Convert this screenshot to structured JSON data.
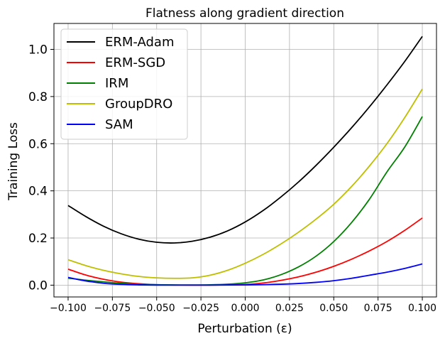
{
  "chart_data": {
    "type": "line",
    "title": "Flatness along gradient direction",
    "xlabel": "Perturbation (ε)",
    "ylabel": "Training Loss",
    "xlim": [
      -0.108,
      0.108
    ],
    "ylim": [
      -0.05,
      1.11
    ],
    "grid": true,
    "legend_position": "top-left",
    "x_ticks": [
      -0.1,
      -0.075,
      -0.05,
      -0.025,
      0.0,
      0.025,
      0.05,
      0.075,
      0.1
    ],
    "x_tick_labels": [
      "−0.100",
      "−0.075",
      "−0.050",
      "−0.025",
      "0.000",
      "0.025",
      "0.050",
      "0.075",
      "0.100"
    ],
    "y_ticks": [
      0.0,
      0.2,
      0.4,
      0.6,
      0.8,
      1.0
    ],
    "y_tick_labels": [
      "0.0",
      "0.2",
      "0.4",
      "0.6",
      "0.8",
      "1.0"
    ],
    "x": [
      -0.1,
      -0.09,
      -0.08,
      -0.07,
      -0.06,
      -0.05,
      -0.04,
      -0.03,
      -0.02,
      -0.01,
      0.0,
      0.01,
      0.02,
      0.03,
      0.04,
      0.05,
      0.06,
      0.07,
      0.08,
      0.09,
      0.1
    ],
    "series": [
      {
        "name": "ERM-Adam",
        "color": "#000000",
        "values": [
          0.338,
          0.291,
          0.25,
          0.218,
          0.195,
          0.182,
          0.179,
          0.186,
          0.203,
          0.23,
          0.268,
          0.316,
          0.373,
          0.437,
          0.508,
          0.585,
          0.667,
          0.755,
          0.849,
          0.948,
          1.055
        ]
      },
      {
        "name": "ERM-SGD",
        "color": "#ff0000",
        "values": [
          0.068,
          0.043,
          0.025,
          0.013,
          0.006,
          0.002,
          0.0005,
          0.0003,
          0.0003,
          0.001,
          0.003,
          0.009,
          0.02,
          0.035,
          0.055,
          0.08,
          0.11,
          0.145,
          0.185,
          0.232,
          0.285
        ]
      },
      {
        "name": "IRM",
        "color": "#008000",
        "values": [
          0.03,
          0.021,
          0.014,
          0.008,
          0.004,
          0.002,
          0.001,
          0.0008,
          0.0015,
          0.004,
          0.01,
          0.022,
          0.044,
          0.077,
          0.123,
          0.185,
          0.265,
          0.363,
          0.48,
          0.585,
          0.715
        ]
      },
      {
        "name": "GroupDRO",
        "color": "#bfbf00",
        "values": [
          0.108,
          0.083,
          0.063,
          0.048,
          0.037,
          0.031,
          0.029,
          0.031,
          0.042,
          0.063,
          0.093,
          0.13,
          0.174,
          0.224,
          0.28,
          0.343,
          0.418,
          0.504,
          0.6,
          0.71,
          0.832
        ]
      },
      {
        "name": "SAM",
        "color": "#0000ff",
        "values": [
          0.033,
          0.018,
          0.008,
          0.003,
          0.001,
          0.0003,
          0.0001,
          0.0001,
          0.0002,
          0.0006,
          0.001,
          0.002,
          0.004,
          0.007,
          0.012,
          0.019,
          0.029,
          0.042,
          0.055,
          0.071,
          0.09
        ]
      }
    ]
  }
}
